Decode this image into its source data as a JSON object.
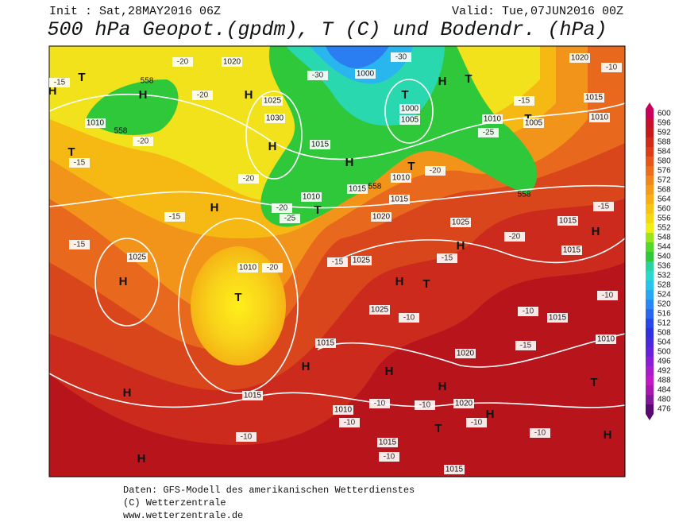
{
  "header": {
    "init": "Init : Sat,28MAY2016 06Z",
    "valid": "Valid: Tue,07JUN2016 00Z",
    "title": "500 hPa Geopot.(gpdm), T (C) und Bodendr. (hPa)"
  },
  "colorbar": {
    "labels": [
      600,
      596,
      592,
      588,
      584,
      580,
      576,
      572,
      568,
      564,
      560,
      556,
      552,
      548,
      544,
      540,
      536,
      532,
      528,
      524,
      520,
      516,
      512,
      508,
      504,
      500,
      496,
      492,
      488,
      484,
      480,
      476
    ]
  },
  "map_labels": {
    "pressure_centers": [
      "H",
      "H",
      "H",
      "H",
      "H",
      "H",
      "T",
      "H",
      "H",
      "H",
      "T",
      "T",
      "T",
      "H",
      "T",
      "T",
      "T",
      "T",
      "H",
      "H",
      "H",
      "T",
      "H",
      "H",
      "T",
      "H",
      "T",
      "H",
      "H"
    ],
    "isobars": [
      1020,
      1000,
      1000,
      1005,
      1025,
      1030,
      1015,
      1010,
      1010,
      1015,
      1010,
      1015,
      1020,
      1025,
      1025,
      1025,
      1010,
      1025,
      1015,
      1015,
      1020,
      1020,
      1010,
      1015,
      1015,
      1010,
      1015,
      1020,
      1005,
      1010,
      1015,
      1015,
      1015,
      1010
    ],
    "temperatures": [
      -30,
      -30,
      -20,
      -15,
      -20,
      -20,
      -15,
      -20,
      -25,
      -20,
      -15,
      -15,
      -20,
      -15,
      -15,
      -20,
      -10,
      -10,
      -15,
      -10,
      -15,
      -25,
      -20,
      -10,
      -10,
      -10,
      -10,
      -10,
      -10,
      -10,
      -15,
      -10
    ],
    "heights": [
      558,
      558,
      558,
      558
    ]
  },
  "footer": {
    "line1": "Daten: GFS-Modell des amerikanischen Wetterdienstes",
    "line2": "(C) Wetterzentrale",
    "line3": "www.wetterzentrale.de"
  }
}
